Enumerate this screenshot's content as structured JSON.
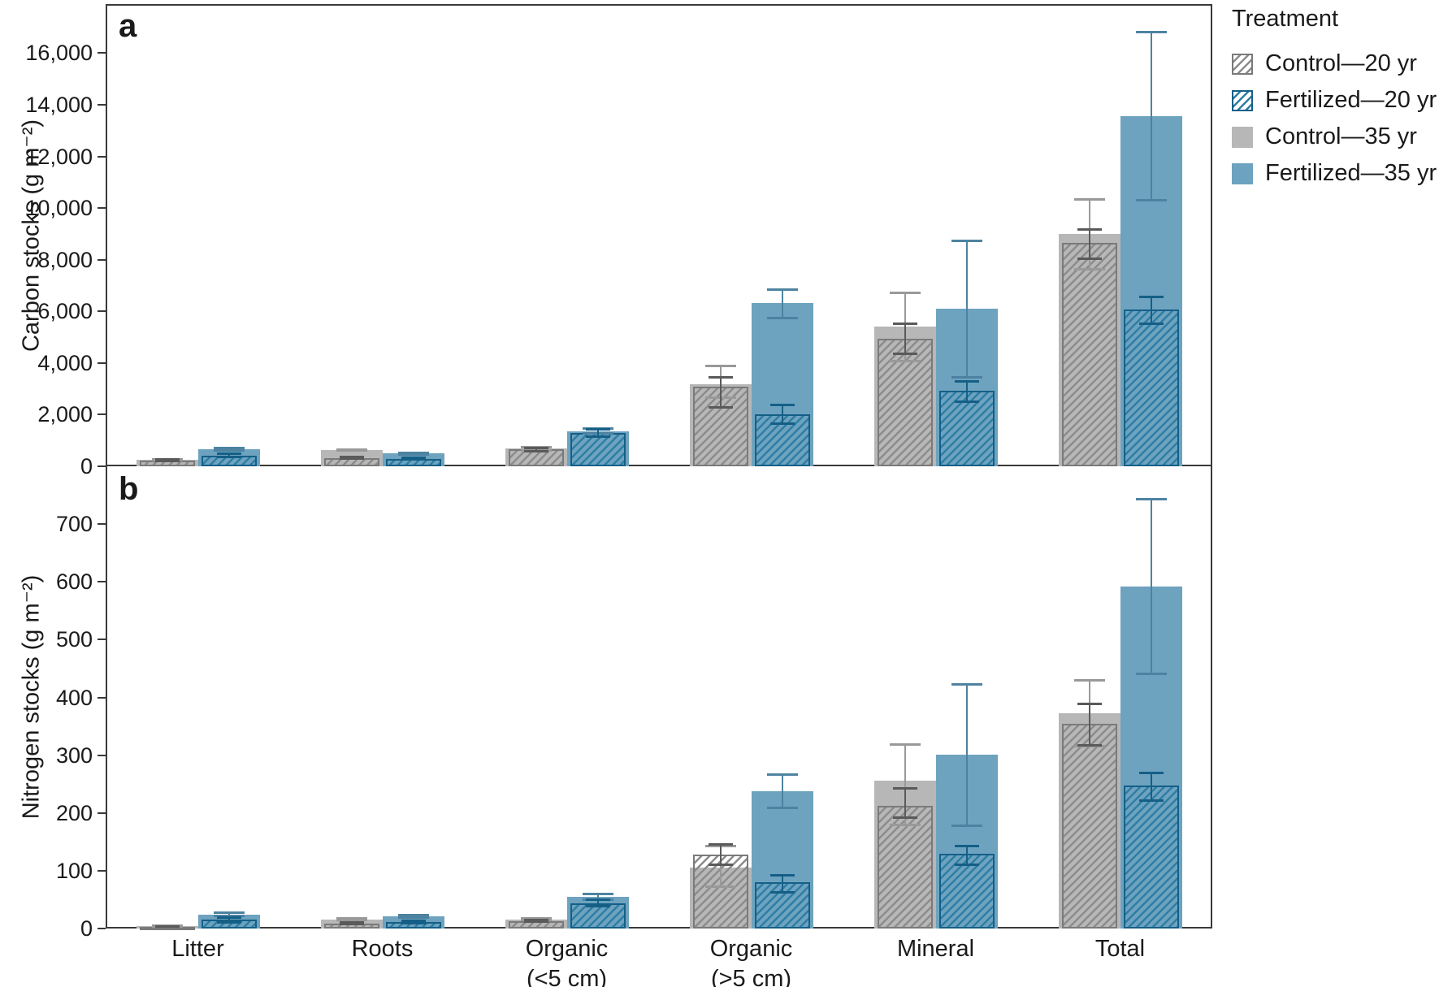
{
  "figure": {
    "panel_a_label": "a",
    "panel_b_label": "b"
  },
  "legend": {
    "title": "Treatment",
    "items": [
      {
        "label": "Control—20 yr",
        "style": "hatched-gray"
      },
      {
        "label": "Fertilized—20 yr",
        "style": "hatched-blue"
      },
      {
        "label": "Control—35 yr",
        "style": "solid-gray"
      },
      {
        "label": "Fertilized—35 yr",
        "style": "solid-blue"
      }
    ]
  },
  "colors": {
    "solid_gray": "#b7b7b7",
    "solid_gray_err": "#999999",
    "hatch_gray_stripe": "#8c8c8c",
    "hatch_gray_border": "#7a7a7a",
    "hatch_gray_err": "#5a5a5a",
    "solid_blue": "#6da3bf",
    "solid_blue_err": "#4d83a1",
    "hatch_blue_stripe": "#2f7da5",
    "hatch_blue_border": "#155f87",
    "hatch_blue_err": "#155f87",
    "axis": "#3a3a3a",
    "text": "#1a1a1a"
  },
  "chart_data": [
    {
      "type": "bar",
      "panel": "a",
      "ylabel": "Carbon stocks (g m⁻²)",
      "xlabel": "",
      "ylim": [
        0,
        17900
      ],
      "grid": false,
      "legend_position": "outside-top-right",
      "yticks": {
        "values": [
          0,
          2000,
          4000,
          6000,
          8000,
          10000,
          12000,
          14000,
          16000
        ],
        "labels": [
          "0",
          "2,000",
          "4,000",
          "6,000",
          "8,000",
          "10,000",
          "12,000",
          "14,000",
          "16,000"
        ]
      },
      "categories": [
        "Litter",
        "Roots",
        "Organic\n(<5 cm)",
        "Organic\n(>5 cm)",
        "Mineral",
        "Total"
      ],
      "series": [
        {
          "name": "Control—20 yr",
          "style": "hatched-gray",
          "values": [
            230,
            320,
            650,
            3080,
            4940,
            8650
          ],
          "err_lo": [
            150,
            240,
            520,
            2230,
            4310,
            7990
          ],
          "err_hi": [
            320,
            400,
            760,
            3490,
            5570,
            9210
          ]
        },
        {
          "name": "Fertilized—20 yr",
          "style": "hatched-blue",
          "values": [
            410,
            290,
            1290,
            2020,
            2920,
            6070
          ],
          "err_lo": [
            300,
            210,
            1100,
            1600,
            2450,
            5470
          ],
          "err_hi": [
            520,
            370,
            1480,
            2420,
            3330,
            6600
          ]
        },
        {
          "name": "Control—35 yr",
          "style": "solid-gray",
          "values": [
            240,
            630,
            690,
            3170,
            5410,
            8990
          ],
          "err_lo": [
            180,
            560,
            580,
            2600,
            4030,
            7580
          ],
          "err_hi": [
            300,
            700,
            800,
            3930,
            6760,
            10380
          ]
        },
        {
          "name": "Fertilized—35 yr",
          "style": "solid-blue",
          "values": [
            660,
            490,
            1350,
            6320,
            6100,
            13560
          ],
          "err_lo": [
            570,
            420,
            1230,
            5690,
            3400,
            10250
          ],
          "err_hi": [
            760,
            560,
            1510,
            6890,
            8770,
            16850
          ]
        }
      ]
    },
    {
      "type": "bar",
      "panel": "b",
      "ylabel": "Nitrogen stocks (g m⁻²)",
      "xlabel": "",
      "ylim": [
        0,
        800
      ],
      "grid": false,
      "legend_position": "outside-top-right",
      "yticks": {
        "values": [
          0,
          100,
          200,
          300,
          400,
          500,
          600,
          700
        ],
        "labels": [
          "0",
          "100",
          "200",
          "300",
          "400",
          "500",
          "600",
          "700"
        ]
      },
      "categories": [
        "Litter",
        "Roots",
        "Organic\n(<5 cm)",
        "Organic\n(>5 cm)",
        "Mineral",
        "Total"
      ],
      "series": [
        {
          "name": "Control—20 yr",
          "style": "hatched-gray",
          "values": [
            3,
            8,
            13,
            128,
            213,
            355
          ],
          "err_lo": [
            2,
            5,
            10,
            108,
            190,
            315
          ],
          "err_hi": [
            5,
            12,
            17,
            147,
            244,
            391
          ]
        },
        {
          "name": "Fertilized—20 yr",
          "style": "hatched-blue",
          "values": [
            15,
            11,
            44,
            80,
            130,
            247
          ],
          "err_lo": [
            9,
            7,
            36,
            61,
            108,
            220
          ],
          "err_hi": [
            21,
            15,
            52,
            94,
            145,
            272
          ]
        },
        {
          "name": "Control—35 yr",
          "style": "solid-gray",
          "values": [
            4,
            15,
            15,
            105,
            256,
            372
          ],
          "err_lo": [
            3,
            12,
            12,
            70,
            177,
            314
          ],
          "err_hi": [
            6,
            19,
            19,
            145,
            320,
            432
          ]
        },
        {
          "name": "Fertilized—35 yr",
          "style": "solid-blue",
          "values": [
            24,
            21,
            55,
            237,
            301,
            592
          ],
          "err_lo": [
            20,
            17,
            48,
            206,
            176,
            438
          ],
          "err_hi": [
            29,
            25,
            62,
            268,
            425,
            745
          ]
        }
      ]
    }
  ]
}
